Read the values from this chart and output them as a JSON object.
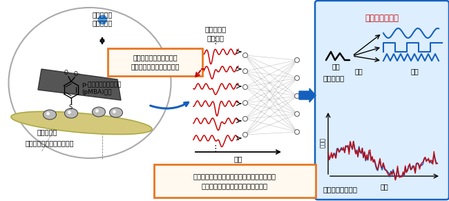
{
  "bg_color": "#ffffff",
  "title_right": "様々な情報処理",
  "label_nyuryoku": "入力",
  "label_henkan": "変換",
  "label_shutsuryoku": "出力",
  "label_hakel": "・波形変換",
  "label_blood": "・血糖値変化予測",
  "label_jikan": "時間",
  "label_blood_val": "血糖値",
  "label_denkai": "電解質中の\n水素イオン",
  "label_pmba": "p-メルカプト安息香酸\n(pMBA)分子",
  "label_ag": "銀ナノ粒子",
  "label_tung": "酸化タングステナノロッド",
  "label_bunshi": "分子振動の\n時間発展",
  "label_jikan2": "時間",
  "label_raman": "ラマンスペクトルとして測定した分子振動の\n時間発展を情報の記憶・計算に利用",
  "box_orange_text": "電圧印加で水素イオンの\n吸着量を制御（情報入力）",
  "orange_color": "#e87722",
  "blue_color": "#1560bd",
  "red_color": "#cc0000",
  "gray_color": "#888888",
  "light_blue_bg": "#ddeeff",
  "tan_color": "#d4c87a",
  "silver_color": "#aaaaaa"
}
